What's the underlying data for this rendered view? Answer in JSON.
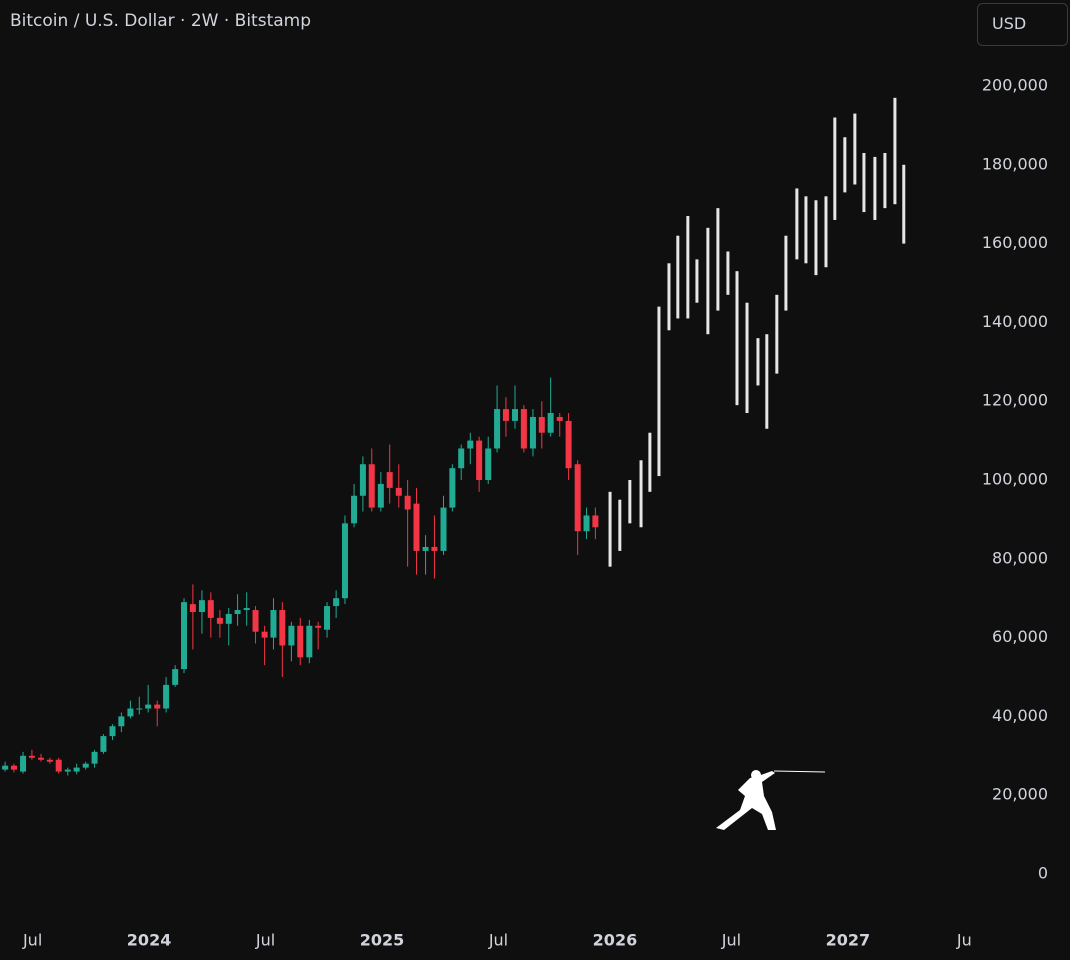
{
  "chart_data": {
    "type": "candlestick",
    "title": "Bitcoin / U.S. Dollar · 2W · Bitstamp",
    "currency": "USD",
    "up_color": "#22ab94",
    "down_color": "#f23645",
    "grid": false,
    "x": [
      2023.382,
      2023.42,
      2023.459,
      2023.497,
      2023.536,
      2023.574,
      2023.612,
      2023.651,
      2023.689,
      2023.728,
      2023.766,
      2023.804,
      2023.843,
      2023.881,
      2023.92,
      2023.958,
      2023.996,
      2024.035,
      2024.073,
      2024.112,
      2024.15,
      2024.188,
      2024.227,
      2024.265,
      2024.304,
      2024.342,
      2024.38,
      2024.419,
      2024.457,
      2024.496,
      2024.534,
      2024.572,
      2024.611,
      2024.649,
      2024.688,
      2024.726,
      2024.764,
      2024.803,
      2024.841,
      2024.88,
      2024.918,
      2024.956,
      2024.995,
      2025.033,
      2025.072,
      2025.11,
      2025.148,
      2025.187,
      2025.225,
      2025.264,
      2025.302,
      2025.34,
      2025.379,
      2025.417,
      2025.456,
      2025.494,
      2025.532,
      2025.571,
      2025.609,
      2025.648,
      2025.686,
      2025.724,
      2025.763,
      2025.801,
      2025.84,
      2025.878,
      2025.916
    ],
    "open": [
      26500,
      27500,
      26000,
      30000,
      29500,
      29000,
      29000,
      26000,
      26000,
      27000,
      28000,
      31000,
      35000,
      37500,
      40000,
      42000,
      42000,
      43000,
      42000,
      48000,
      52000,
      68500,
      66500,
      69500,
      65000,
      63500,
      66000,
      67000,
      67000,
      61500,
      60000,
      67000,
      58000,
      63000,
      55000,
      63000,
      62000,
      68000,
      70000,
      89000,
      96000,
      104000,
      93000,
      102000,
      98000,
      96000,
      94000,
      82000,
      83000,
      82000,
      93000,
      103000,
      108000,
      110000,
      100000,
      108000,
      118000,
      115000,
      118000,
      108000,
      116000,
      112000,
      116000,
      115000,
      104000,
      87000,
      91000
    ],
    "high": [
      28500,
      28000,
      31000,
      31500,
      30500,
      29500,
      29500,
      27000,
      28000,
      28500,
      31500,
      35500,
      38000,
      41000,
      44000,
      45000,
      48000,
      44000,
      50000,
      53000,
      70000,
      73500,
      72000,
      71500,
      67000,
      67500,
      71000,
      71500,
      68000,
      63000,
      70000,
      69000,
      64000,
      65000,
      64500,
      64000,
      69000,
      72000,
      91000,
      99000,
      106000,
      108000,
      102000,
      109000,
      104000,
      100000,
      98000,
      86000,
      91000,
      96000,
      104000,
      109000,
      112000,
      111000,
      111000,
      124000,
      121000,
      124000,
      119000,
      118000,
      120000,
      126000,
      117000,
      117000,
      105000,
      93000,
      93000
    ],
    "low": [
      26000,
      25800,
      25500,
      29000,
      28500,
      28000,
      25500,
      25000,
      25300,
      26500,
      27000,
      30500,
      34000,
      36000,
      39500,
      40500,
      41000,
      37500,
      41000,
      47500,
      51000,
      57000,
      61000,
      60000,
      60000,
      58000,
      63000,
      63000,
      58500,
      53000,
      57000,
      50000,
      54000,
      53000,
      53500,
      57000,
      60000,
      65000,
      68500,
      88000,
      92000,
      92000,
      92000,
      94000,
      93000,
      78000,
      76000,
      76000,
      75000,
      81000,
      92000,
      100000,
      104000,
      97000,
      99000,
      107000,
      111000,
      113000,
      107000,
      106000,
      108000,
      111000,
      111000,
      100000,
      81000,
      85000,
      85000
    ],
    "close": [
      27500,
      26500,
      30000,
      29500,
      29000,
      28500,
      26000,
      26500,
      27000,
      28000,
      31000,
      35000,
      37500,
      40000,
      42000,
      42000,
      43000,
      42000,
      48000,
      52000,
      69000,
      66500,
      69500,
      65000,
      63500,
      66000,
      67000,
      67500,
      61500,
      60000,
      67000,
      58000,
      63000,
      55000,
      63000,
      62500,
      68000,
      70000,
      89000,
      96000,
      104000,
      93000,
      99000,
      98000,
      96000,
      92500,
      82000,
      83000,
      82000,
      93000,
      103000,
      108000,
      110000,
      100000,
      108000,
      118000,
      115000,
      118000,
      108000,
      116000,
      112000,
      117000,
      115000,
      103000,
      87000,
      91000,
      88000
    ],
    "projection": {
      "color": "#e6e6e6",
      "x": [
        2025.979,
        2026.021,
        2026.064,
        2026.112,
        2026.15,
        2026.189,
        2026.232,
        2026.27,
        2026.313,
        2026.352,
        2026.399,
        2026.442,
        2026.485,
        2026.524,
        2026.567,
        2026.614,
        2026.652,
        2026.695,
        2026.734,
        2026.781,
        2026.82,
        2026.863,
        2026.906,
        2026.944,
        2026.987,
        2027.03,
        2027.069,
        2027.116,
        2027.159,
        2027.202,
        2027.24
      ],
      "low": [
        78000,
        82000,
        89000,
        88000,
        97000,
        101000,
        138000,
        141000,
        141000,
        145000,
        137000,
        143000,
        147000,
        119000,
        117000,
        124000,
        113000,
        127000,
        143000,
        156000,
        155000,
        152000,
        154000,
        166000,
        173000,
        175000,
        168000,
        166000,
        169000,
        170000,
        160000
      ],
      "high": [
        97000,
        95000,
        100000,
        105000,
        112000,
        144000,
        155000,
        162000,
        167000,
        156000,
        164000,
        169000,
        158000,
        153000,
        145000,
        136000,
        137000,
        147000,
        162000,
        174000,
        172000,
        171000,
        172000,
        192000,
        187000,
        193000,
        183000,
        182000,
        183000,
        197000,
        180000
      ]
    },
    "xlim": [
      2023.36,
      2027.52
    ],
    "xticks": [
      {
        "value": 2023.5,
        "label": "Jul"
      },
      2024,
      {
        "value": 2024.5,
        "label": "Jul"
      },
      2025,
      {
        "value": 2025.5,
        "label": "Jul"
      },
      2026,
      {
        "value": 2026.5,
        "label": "Jul"
      },
      2027,
      {
        "value": 2027.5,
        "label": "Ju"
      }
    ],
    "ylim": [
      0,
      200000
    ],
    "yticks": [
      0,
      {
        "value": 20000,
        "label": "20,000"
      },
      {
        "value": 40000,
        "label": "40,000"
      },
      {
        "value": 60000,
        "label": "60,000"
      },
      {
        "value": 80000,
        "label": "80,000"
      },
      {
        "value": 100000,
        "label": "100,000"
      },
      {
        "value": 120000,
        "label": "120,000"
      },
      {
        "value": 140000,
        "label": "140,000"
      },
      {
        "value": 160000,
        "label": "160,000"
      },
      {
        "value": 180000,
        "label": "180,000"
      },
      {
        "value": 200000,
        "label": "200,000"
      }
    ]
  }
}
